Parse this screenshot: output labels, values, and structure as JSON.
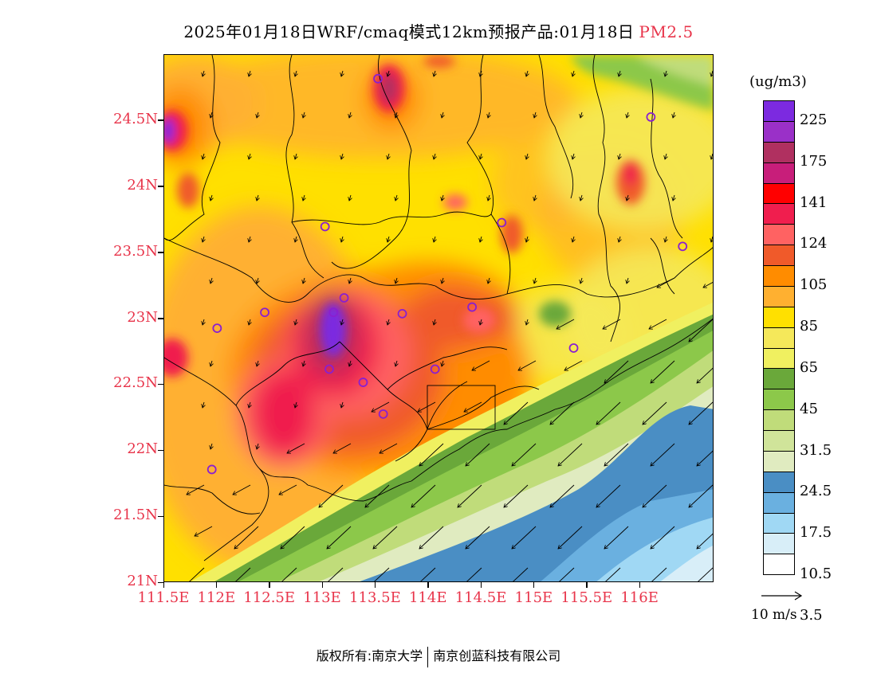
{
  "title": {
    "main": "2025年01月18日WRF/cmaq模式12km预报产品:01月18日",
    "pollutant": "PM2.5"
  },
  "axes": {
    "y_labels": [
      "24.5N",
      "24N",
      "23.5N",
      "23N",
      "22.5N",
      "22N",
      "21.5N",
      "21N"
    ],
    "x_labels": [
      "111.5E",
      "112E",
      "112.5E",
      "113E",
      "113.5E",
      "114E",
      "114.5E",
      "115E",
      "115.5E",
      "116E"
    ],
    "lat_range": [
      21.0,
      25.0
    ],
    "lon_range": [
      111.5,
      116.7
    ]
  },
  "colorbar": {
    "unit": "(ug/m3)",
    "labels": [
      "225",
      "175",
      "141",
      "124",
      "105",
      "85",
      "65",
      "45",
      "31.5",
      "24.5",
      "17.5",
      "10.5",
      "3.5"
    ],
    "colors_top_to_bottom": [
      "#7c2ae0",
      "#9a30c8",
      "#b03060",
      "#c81e7a",
      "#ff0000",
      "#f01e4e",
      "#ff6262",
      "#f05a2a",
      "#ff8c00",
      "#ffb030",
      "#ffe000",
      "#f5e85a",
      "#f0f060",
      "#6aa83a",
      "#8cc84a",
      "#c0dc7a",
      "#d0e49a",
      "#e0ebc0",
      "#4a8ec4",
      "#6ab0e0",
      "#a0d8f4",
      "#d8eef8",
      "#ffffff"
    ]
  },
  "reference_vector": {
    "label": "10 m/s"
  },
  "sites": [
    {
      "lon": 113.52,
      "lat": 24.82
    },
    {
      "lon": 113.02,
      "lat": 23.7
    },
    {
      "lon": 114.69,
      "lat": 23.73
    },
    {
      "lon": 116.1,
      "lat": 24.53
    },
    {
      "lon": 116.4,
      "lat": 23.55
    },
    {
      "lon": 112.45,
      "lat": 23.05
    },
    {
      "lon": 112.0,
      "lat": 22.93
    },
    {
      "lon": 113.1,
      "lat": 23.05
    },
    {
      "lon": 113.2,
      "lat": 23.16
    },
    {
      "lon": 113.75,
      "lat": 23.04
    },
    {
      "lon": 114.41,
      "lat": 23.09
    },
    {
      "lon": 113.06,
      "lat": 22.62
    },
    {
      "lon": 113.38,
      "lat": 22.52
    },
    {
      "lon": 114.06,
      "lat": 22.62
    },
    {
      "lon": 113.57,
      "lat": 22.28
    },
    {
      "lon": 111.95,
      "lat": 21.86
    },
    {
      "lon": 115.37,
      "lat": 22.78
    }
  ],
  "footer": {
    "left": "版权所有:南京大学",
    "right": "南京创蓝科技有限公司"
  }
}
